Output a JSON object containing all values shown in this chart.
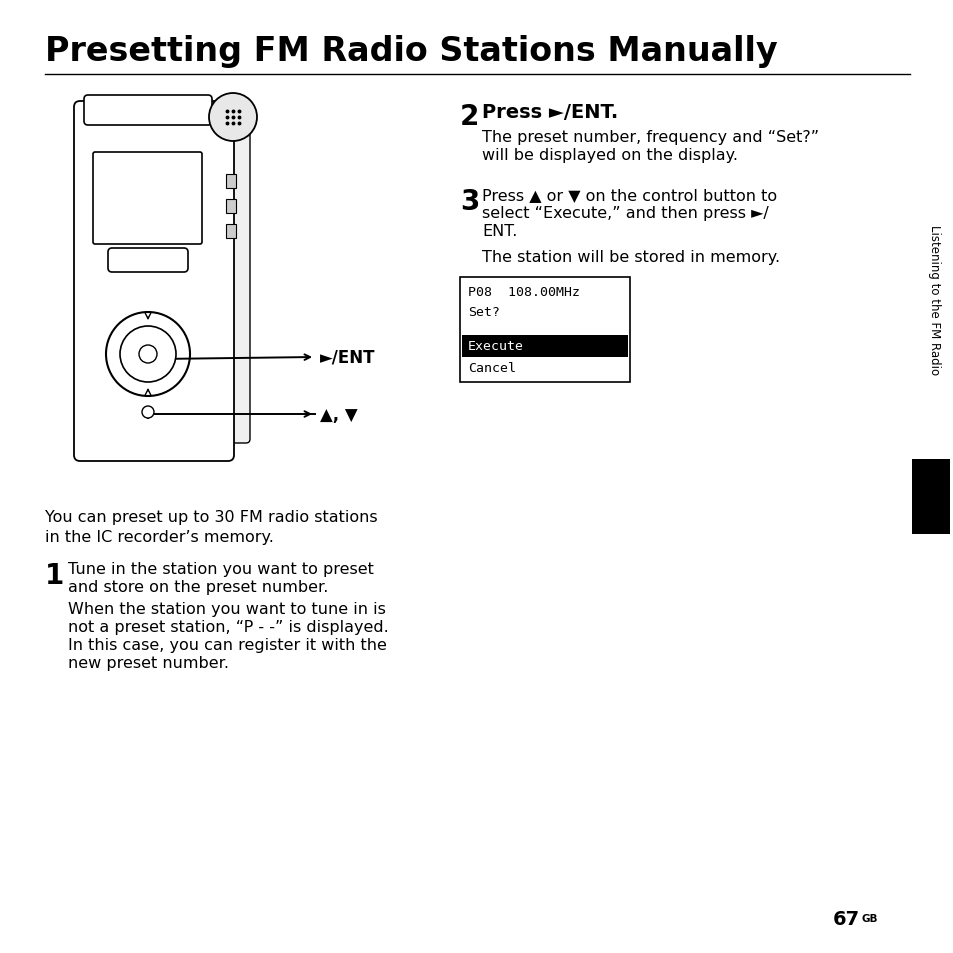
{
  "title": "Presetting FM Radio Stations Manually",
  "bg_color": "#ffffff",
  "text_color": "#000000",
  "title_fontsize": 24,
  "body_fontsize": 11.5,
  "step_num_fontsize": 18,
  "step1_large": "1",
  "step1_text_line1": "Tune in the station you want to preset",
  "step1_text_line2": "and store on the preset number.",
  "step1_sub_line1": "When the station you want to tune in is",
  "step1_sub_line2": "not a preset station, “P - -” is displayed.",
  "step1_sub_line3": "In this case, you can register it with the",
  "step1_sub_line4": "new preset number.",
  "step2_large": "2",
  "step2_text": "Press ►/ENT.",
  "step2_sub_line1": "The preset number, frequency and “Set?”",
  "step2_sub_line2": "will be displayed on the display.",
  "step3_large": "3",
  "step3_text_line1": "Press ▲ or ▼ on the control button to",
  "step3_text_line2": "select “Execute,” and then press ►/",
  "step3_text_line3": "ENT.",
  "step3_sub": "The station will be stored in memory.",
  "desc_line1": "You can preset up to 30 FM radio stations",
  "desc_line2": "in the IC recorder’s memory.",
  "display_line1": "P08  108.00MHz",
  "display_line2": "Set?",
  "display_execute": "Execute",
  "display_cancel": "Cancel",
  "sidebar_text": "Listening to the FM Radio",
  "page_num": "67",
  "page_suffix": "GB",
  "ent_label": "►/ENT",
  "arrow_label": "▲, ▼"
}
